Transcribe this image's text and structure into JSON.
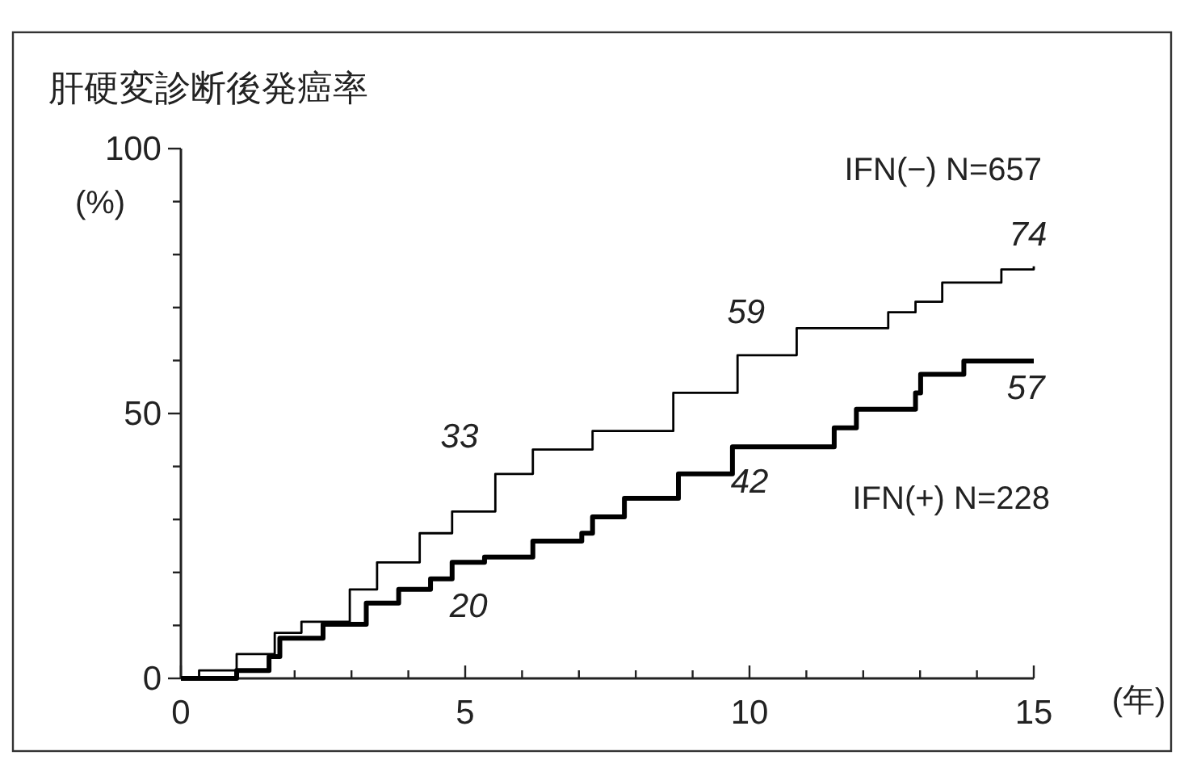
{
  "chart_data": {
    "type": "step",
    "title": "肝硬変診断後発癌率",
    "ylabel": "(%)",
    "xlabel": "(年)",
    "xlim": [
      0,
      15
    ],
    "ylim": [
      0,
      100
    ],
    "xticks": [
      0,
      {
        "value": 1,
        "label": null
      },
      {
        "value": 2,
        "label": null
      },
      {
        "value": 3,
        "label": null
      },
      {
        "value": 4,
        "label": null
      },
      5,
      {
        "value": 6,
        "label": null
      },
      {
        "value": 7,
        "label": null
      },
      {
        "value": 8,
        "label": null
      },
      {
        "value": 9,
        "label": null
      },
      10,
      {
        "value": 11,
        "label": null
      },
      {
        "value": 12,
        "label": null
      },
      {
        "value": 13,
        "label": null
      },
      {
        "value": 14,
        "label": null
      },
      15
    ],
    "yticks": [
      0,
      {
        "value": 10,
        "label": null
      },
      {
        "value": 20,
        "label": null
      },
      {
        "value": 30,
        "label": null
      },
      {
        "value": 40,
        "label": null
      },
      50,
      {
        "value": 60,
        "label": null
      },
      {
        "value": 70,
        "label": null
      },
      {
        "value": 80,
        "label": null
      },
      {
        "value": 90,
        "label": null
      },
      100
    ],
    "legend": false,
    "grid": false,
    "series": [
      {
        "name": "IFN(−) N=657",
        "color": "#000000",
        "x": [
          0,
          0.32,
          0.98,
          1.65,
          2.12,
          2.97,
          3.45,
          4.2,
          4.77,
          5.53,
          6.19,
          7.24,
          8.66,
          9.79,
          10.83,
          12.44,
          12.92,
          13.39,
          14.43,
          15
        ],
        "values": [
          0,
          1.5,
          4.6,
          8.6,
          10.7,
          16.8,
          21.9,
          27.4,
          31.5,
          38.6,
          43.2,
          46.7,
          53.9,
          61.0,
          66.1,
          69.1,
          71.1,
          74.7,
          77.2,
          77.8
        ]
      },
      {
        "name": "IFN(+) N=228",
        "color": "#000000",
        "x": [
          0,
          0.42,
          0.98,
          1.55,
          1.74,
          2.5,
          3.26,
          3.83,
          4.39,
          4.77,
          5.34,
          6.19,
          7.05,
          7.24,
          7.8,
          8.75,
          9.7,
          11.49,
          11.88,
          12.92,
          13.01,
          13.77,
          15
        ],
        "values": [
          0,
          0,
          1.5,
          4.1,
          7.6,
          10.2,
          14.2,
          16.8,
          18.8,
          21.9,
          22.9,
          25.9,
          27.4,
          30.5,
          34.0,
          38.6,
          43.7,
          47.3,
          50.8,
          53.9,
          57.4,
          59.9,
          59.9
        ]
      }
    ],
    "annotations": [
      "33",
      "59",
      "74",
      "20",
      "42",
      "57"
    ]
  }
}
